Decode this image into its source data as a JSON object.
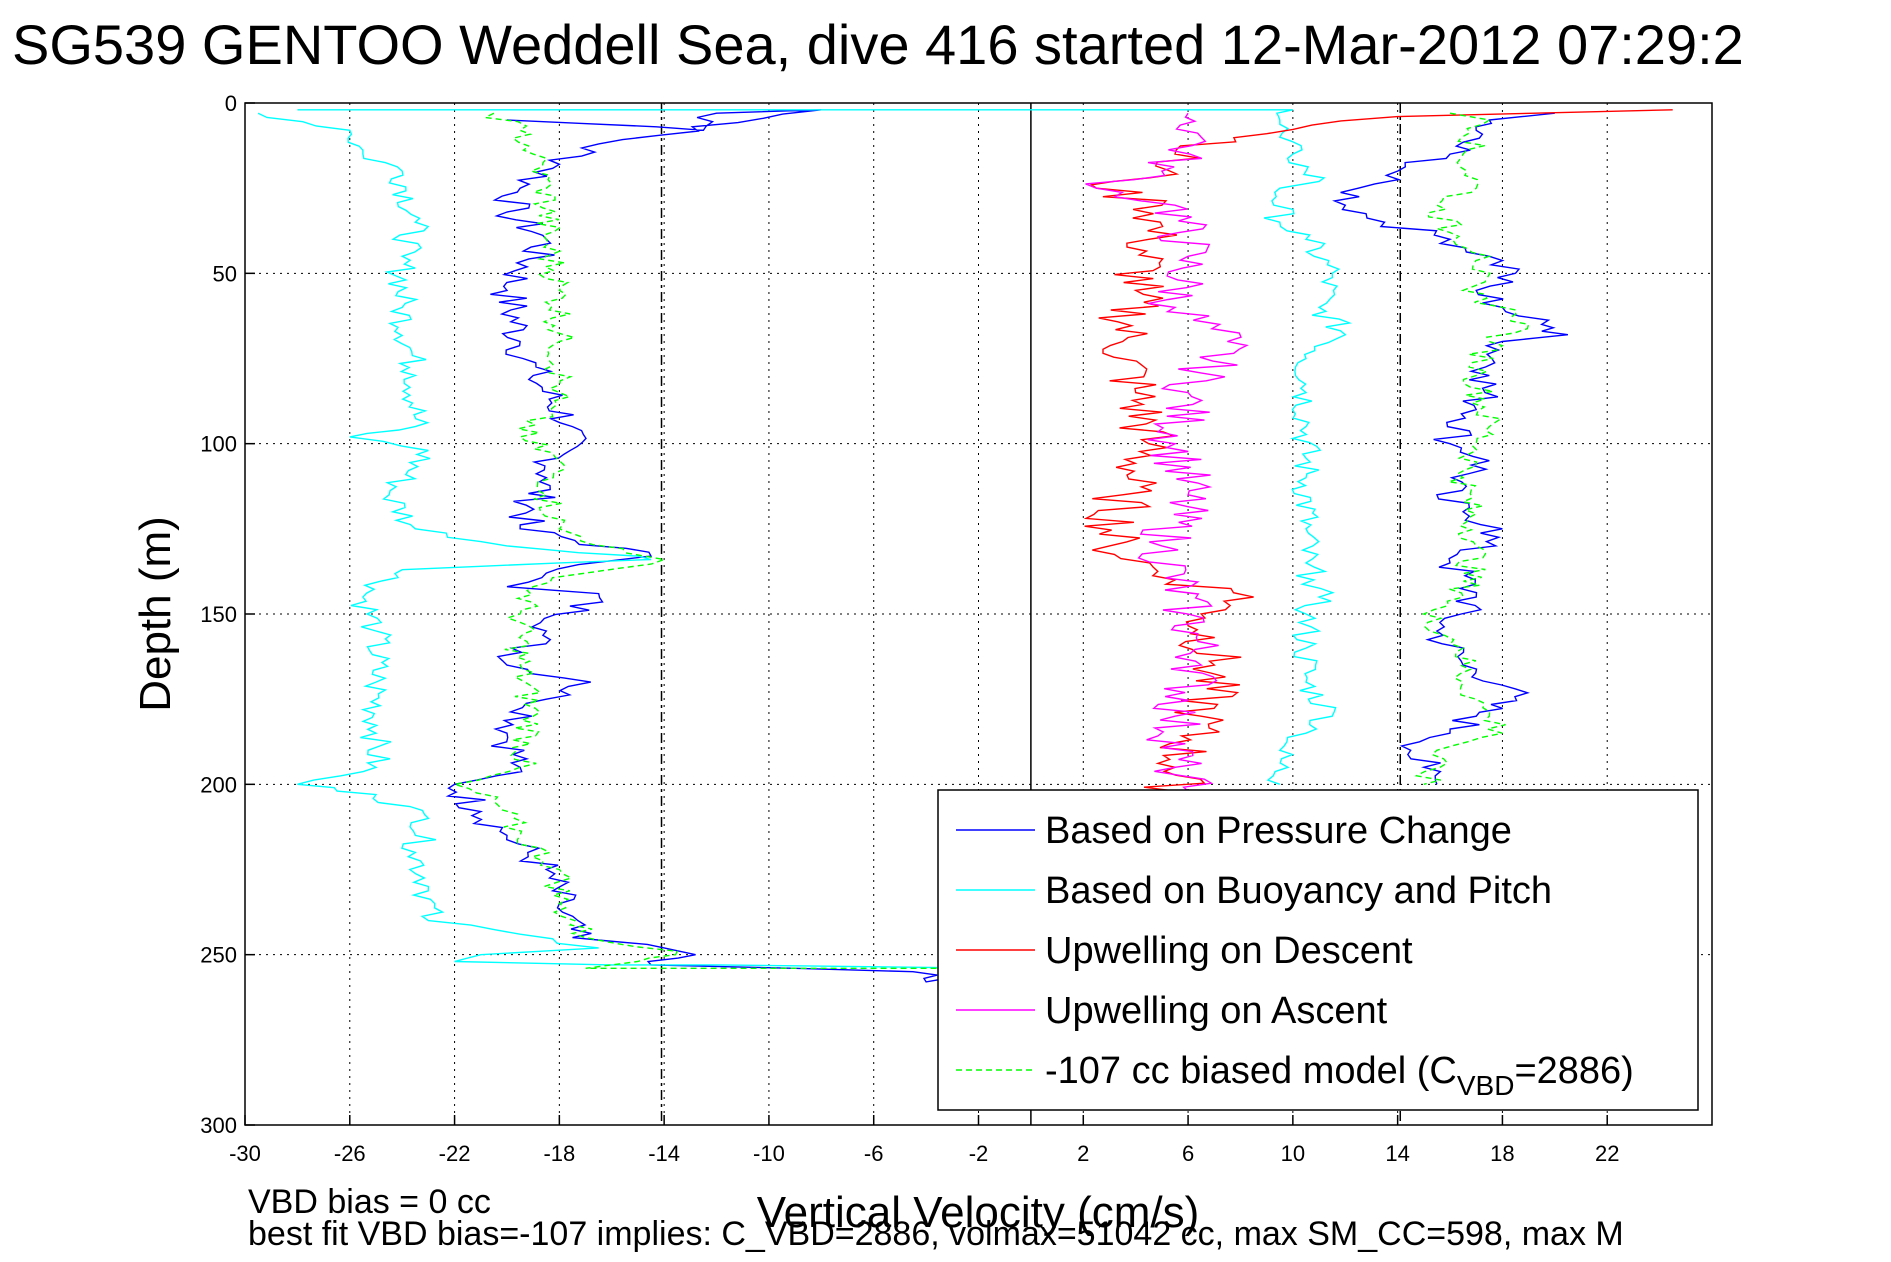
{
  "chart_data": {
    "type": "line",
    "title": "SG539 GENTOO Weddell Sea, dive 416 started 12-Mar-2012 07:29:2",
    "xlabel": "Vertical Velocity (cm/s)",
    "ylabel": "Depth (m)",
    "xlim": [
      -30,
      26
    ],
    "ylim": [
      300,
      0
    ],
    "y_reversed": true,
    "grid": true,
    "legend_position": "bottom-right",
    "xticks": [
      -30,
      -26,
      -22,
      -18,
      -14,
      -10,
      -6,
      -2,
      2,
      6,
      10,
      14,
      18,
      22
    ],
    "yticks": [
      0,
      50,
      100,
      150,
      200,
      250,
      300
    ],
    "reference_lines": [
      {
        "x": -14.1,
        "style": "dashed",
        "color": "#000000"
      },
      {
        "x": 0,
        "style": "solid",
        "color": "#000000"
      },
      {
        "x": 14.1,
        "style": "dashed",
        "color": "#000000"
      }
    ],
    "series": [
      {
        "name": "Based on Pressure Change",
        "color": "#0000ff",
        "style": "solid",
        "jitter": 0.8,
        "points": [
          [
            -20.0,
            5
          ],
          [
            -14.3,
            7
          ],
          [
            -12.5,
            8
          ],
          [
            -12.0,
            3
          ],
          [
            -8.0,
            2
          ],
          [
            -16.5,
            12
          ],
          [
            -18.0,
            18
          ],
          [
            -19.5,
            25
          ],
          [
            -20.0,
            32
          ],
          [
            -18.5,
            40
          ],
          [
            -20.0,
            55
          ],
          [
            -19.5,
            70
          ],
          [
            -19.0,
            80
          ],
          [
            -17.5,
            95
          ],
          [
            -18.5,
            110
          ],
          [
            -19.5,
            125
          ],
          [
            -14.5,
            133
          ],
          [
            -18.5,
            138
          ],
          [
            -20.0,
            142
          ],
          [
            -16.5,
            144
          ],
          [
            -18.5,
            155
          ],
          [
            -20.0,
            165
          ],
          [
            -16.8,
            170
          ],
          [
            -18.5,
            175
          ],
          [
            -20.0,
            185
          ],
          [
            -19.5,
            195
          ],
          [
            -22.0,
            200
          ],
          [
            -21.0,
            208
          ],
          [
            -20.0,
            215
          ],
          [
            -18.5,
            225
          ],
          [
            -18.0,
            235
          ],
          [
            -17.5,
            245
          ],
          [
            -14.0,
            248
          ],
          [
            -12.8,
            250
          ],
          [
            -14.5,
            253
          ],
          [
            -9.0,
            254
          ],
          [
            -4.5,
            255
          ],
          [
            -4.0,
            258
          ],
          [
            -2.5,
            256
          ]
        ],
        "points2": [
          [
            20.0,
            3
          ],
          [
            17.5,
            5
          ],
          [
            17.0,
            8
          ],
          [
            16.0,
            15
          ],
          [
            14.0,
            20
          ],
          [
            12.5,
            25
          ],
          [
            12.0,
            30
          ],
          [
            13.5,
            35
          ],
          [
            16.0,
            40
          ],
          [
            17.5,
            45
          ],
          [
            18.5,
            50
          ],
          [
            17.0,
            55
          ],
          [
            18.0,
            60
          ],
          [
            19.5,
            65
          ],
          [
            20.5,
            68
          ],
          [
            18.0,
            70
          ],
          [
            17.5,
            80
          ],
          [
            17.0,
            90
          ],
          [
            16.0,
            100
          ],
          [
            17.5,
            105
          ],
          [
            15.5,
            115
          ],
          [
            16.5,
            120
          ],
          [
            18.0,
            125
          ],
          [
            16.0,
            135
          ],
          [
            17.0,
            145
          ],
          [
            15.5,
            155
          ],
          [
            16.5,
            165
          ],
          [
            18.5,
            172
          ],
          [
            17.0,
            180
          ],
          [
            16.0,
            185
          ],
          [
            14.5,
            190
          ],
          [
            15.0,
            195
          ],
          [
            15.5,
            200
          ]
        ]
      },
      {
        "name": "Based on Buoyancy and Pitch",
        "color": "#00ffff",
        "style": "solid",
        "jitter": 0.6,
        "points": [
          [
            -29.5,
            3
          ],
          [
            -26.0,
            8
          ],
          [
            -25.5,
            15
          ],
          [
            -24.0,
            20
          ],
          [
            -23.5,
            35
          ],
          [
            -24.0,
            45
          ],
          [
            -24.0,
            60
          ],
          [
            -23.5,
            80
          ],
          [
            -23.5,
            95
          ],
          [
            -26.0,
            98
          ],
          [
            -23.0,
            102
          ],
          [
            -24.5,
            115
          ],
          [
            -23.5,
            125
          ],
          [
            -20.0,
            130
          ],
          [
            -15.0,
            133
          ],
          [
            -14.5,
            134
          ],
          [
            -18.0,
            135
          ],
          [
            -24.0,
            137
          ],
          [
            -25.5,
            145
          ],
          [
            -25.0,
            155
          ],
          [
            -25.0,
            170
          ],
          [
            -25.0,
            185
          ],
          [
            -25.0,
            195
          ],
          [
            -28.0,
            200
          ],
          [
            -25.0,
            203
          ],
          [
            -23.0,
            210
          ],
          [
            -23.5,
            220
          ],
          [
            -23.0,
            230
          ],
          [
            -23.0,
            240
          ],
          [
            -19.5,
            244
          ],
          [
            -16.5,
            248
          ],
          [
            -21.0,
            250
          ],
          [
            -22.0,
            252
          ],
          [
            -16.0,
            253
          ],
          [
            -12.0,
            253
          ],
          [
            -1.0,
            254
          ]
        ],
        "points2": [
          [
            -28.0,
            2
          ],
          [
            10.0,
            2
          ],
          [
            9.5,
            5
          ],
          [
            9.5,
            10
          ],
          [
            10.0,
            15
          ],
          [
            10.5,
            20
          ],
          [
            11.0,
            23
          ],
          [
            9.5,
            25
          ],
          [
            9.5,
            35
          ],
          [
            10.5,
            40
          ],
          [
            11.5,
            50
          ],
          [
            11.0,
            60
          ],
          [
            12.0,
            68
          ],
          [
            10.5,
            75
          ],
          [
            10.5,
            85
          ],
          [
            10.5,
            95
          ],
          [
            10.5,
            110
          ],
          [
            10.5,
            125
          ],
          [
            10.5,
            135
          ],
          [
            10.8,
            140
          ],
          [
            11.0,
            145
          ],
          [
            10.5,
            150
          ],
          [
            10.5,
            160
          ],
          [
            10.5,
            170
          ],
          [
            11.5,
            180
          ],
          [
            10.5,
            185
          ],
          [
            9.5,
            190
          ],
          [
            9.5,
            200
          ]
        ]
      },
      {
        "name": "Upwelling on Descent",
        "color": "#ff0000",
        "style": "solid",
        "jitter": 1.2,
        "points": [
          [
            24.5,
            2
          ],
          [
            14.0,
            4
          ],
          [
            9.0,
            9
          ],
          [
            5.5,
            15
          ],
          [
            4.5,
            22
          ],
          [
            2.5,
            25
          ],
          [
            5.0,
            30
          ],
          [
            4.5,
            40
          ],
          [
            4.0,
            55
          ],
          [
            3.5,
            70
          ],
          [
            4.0,
            85
          ],
          [
            4.5,
            100
          ],
          [
            3.5,
            115
          ],
          [
            3.0,
            130
          ],
          [
            5.5,
            140
          ],
          [
            8.5,
            145
          ],
          [
            6.5,
            150
          ],
          [
            7.0,
            165
          ],
          [
            6.5,
            180
          ],
          [
            5.5,
            195
          ],
          [
            5.5,
            202
          ]
        ]
      },
      {
        "name": "Upwelling on Ascent",
        "color": "#ff00ff",
        "style": "solid",
        "jitter": 1.1,
        "points": [
          [
            6.0,
            3
          ],
          [
            6.5,
            10
          ],
          [
            5.0,
            20
          ],
          [
            2.5,
            25
          ],
          [
            5.5,
            30
          ],
          [
            6.0,
            45
          ],
          [
            5.5,
            60
          ],
          [
            7.5,
            70
          ],
          [
            6.0,
            85
          ],
          [
            5.5,
            100
          ],
          [
            6.0,
            115
          ],
          [
            5.0,
            130
          ],
          [
            6.0,
            150
          ],
          [
            6.5,
            165
          ],
          [
            5.5,
            180
          ],
          [
            5.5,
            195
          ],
          [
            6.0,
            202
          ]
        ]
      },
      {
        "name": "-107 cc biased model (C",
        "name_sub": "VBD",
        "name_suffix": "=2886)",
        "color": "#00ff00",
        "style": "dashed",
        "jitter": 0.6,
        "points": [
          [
            -20.5,
            3
          ],
          [
            -19.5,
            8
          ],
          [
            -19.0,
            15
          ],
          [
            -18.5,
            25
          ],
          [
            -18.5,
            40
          ],
          [
            -18.0,
            55
          ],
          [
            -18.0,
            70
          ],
          [
            -18.0,
            85
          ],
          [
            -19.5,
            98
          ],
          [
            -18.0,
            105
          ],
          [
            -18.5,
            115
          ],
          [
            -18.0,
            125
          ],
          [
            -15.5,
            132
          ],
          [
            -14.0,
            134
          ],
          [
            -17.0,
            138
          ],
          [
            -19.0,
            142
          ],
          [
            -19.5,
            150
          ],
          [
            -19.5,
            165
          ],
          [
            -19.0,
            180
          ],
          [
            -19.5,
            195
          ],
          [
            -22.0,
            200
          ],
          [
            -20.5,
            205
          ],
          [
            -19.5,
            215
          ],
          [
            -18.0,
            225
          ],
          [
            -18.0,
            235
          ],
          [
            -17.0,
            245
          ],
          [
            -13.5,
            249
          ],
          [
            -15.0,
            252
          ],
          [
            -17.0,
            254
          ],
          [
            -12.0,
            254
          ],
          [
            -2.0,
            254
          ]
        ],
        "points2": [
          [
            16.0,
            3
          ],
          [
            17.5,
            5
          ],
          [
            16.5,
            15
          ],
          [
            17.0,
            25
          ],
          [
            15.5,
            30
          ],
          [
            16.0,
            38
          ],
          [
            17.5,
            45
          ],
          [
            16.5,
            55
          ],
          [
            18.5,
            62
          ],
          [
            19.0,
            65
          ],
          [
            17.5,
            70
          ],
          [
            17.0,
            80
          ],
          [
            17.5,
            95
          ],
          [
            16.5,
            110
          ],
          [
            17.0,
            130
          ],
          [
            16.5,
            145
          ],
          [
            15.0,
            150
          ],
          [
            16.5,
            160
          ],
          [
            16.5,
            170
          ],
          [
            17.5,
            180
          ],
          [
            18.0,
            185
          ],
          [
            15.5,
            190
          ],
          [
            15.0,
            200
          ]
        ]
      }
    ]
  },
  "annotations": {
    "line1": "VBD bias = 0 cc",
    "line2": "best fit VBD bias=-107 implies: C_VBD=2886, volmax=51042 cc, max SM_CC=598, max M"
  }
}
